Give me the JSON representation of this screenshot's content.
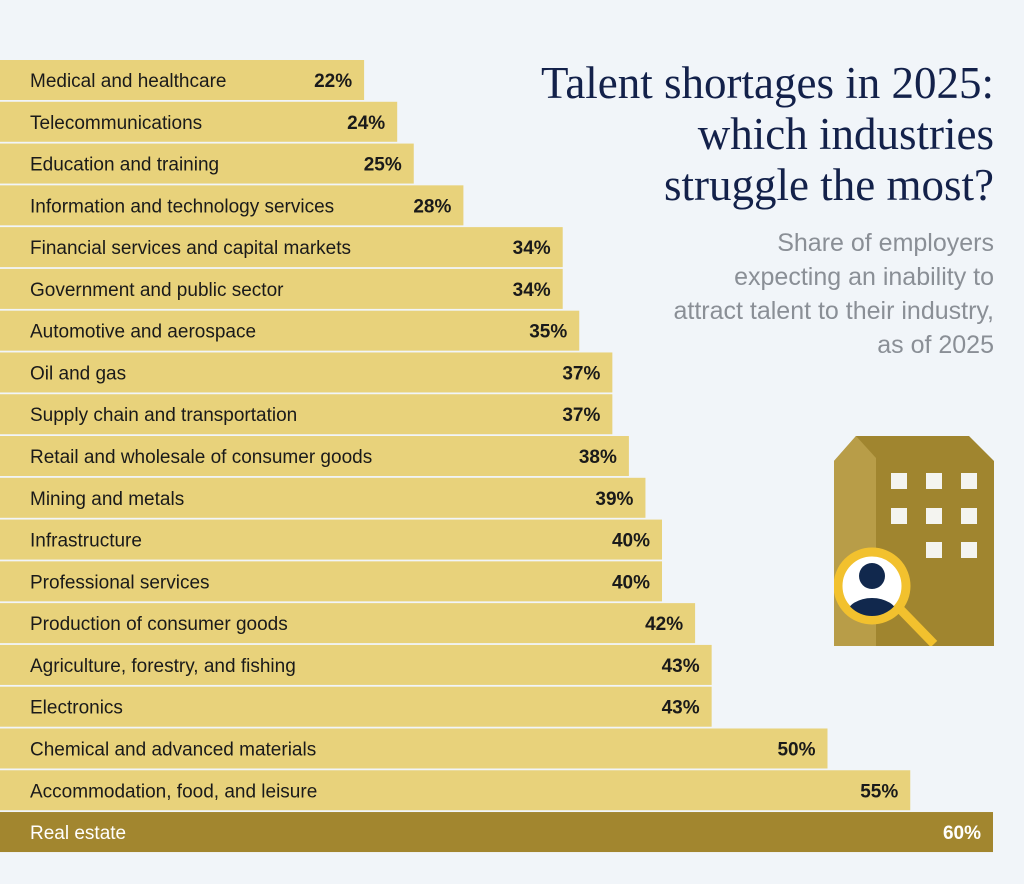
{
  "title": "Talent shortages in 2025:\nwhich industries\nstruggle the most?",
  "subtitle": "Share of employers expecting an inability to attract talent to their industry, as of 2025",
  "icon": "building-magnifier-person-icon",
  "colors": {
    "bar": "#e8d27b",
    "highlight": "#a2862f",
    "background": "#f1f5f9",
    "title": "#13214a"
  },
  "chart_data": {
    "type": "bar",
    "orientation": "horizontal",
    "title": "Talent shortages in 2025: which industries struggle the most?",
    "subtitle": "Share of employers expecting an inability to attract talent to their industry, as of 2025",
    "categories": [
      "Medical and healthcare",
      "Telecommunications",
      "Education and training",
      "Information and technology services",
      "Financial services and capital markets",
      "Government and public sector",
      "Automotive and aerospace",
      "Oil and gas",
      "Supply chain and transportation",
      "Retail and wholesale of consumer goods",
      "Mining and metals",
      "Infrastructure",
      "Professional services",
      "Production of consumer goods",
      "Agriculture, forestry, and fishing",
      "Electronics",
      "Chemical and advanced materials",
      "Accommodation, food, and leisure",
      "Real estate"
    ],
    "values": [
      22,
      24,
      25,
      28,
      34,
      34,
      35,
      37,
      37,
      38,
      39,
      40,
      40,
      42,
      43,
      43,
      50,
      55,
      60
    ],
    "value_labels": [
      "22%",
      "24%",
      "25%",
      "28%",
      "34%",
      "34%",
      "35%",
      "37%",
      "37%",
      "38%",
      "39%",
      "40%",
      "40%",
      "42%",
      "43%",
      "43%",
      "50%",
      "55%",
      "60%"
    ],
    "unit": "%",
    "highlighted": "Real estate",
    "grid": false,
    "xlim": [
      0,
      60
    ]
  }
}
